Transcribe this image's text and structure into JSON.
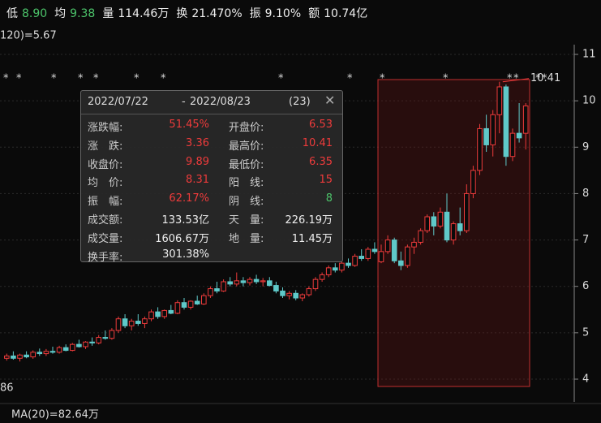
{
  "header": [
    {
      "label": "低",
      "value": "8.90",
      "color": "#4cc36a"
    },
    {
      "label": "均",
      "value": "9.38",
      "color": "#4cc36a"
    },
    {
      "label": "量",
      "value": "114.46万",
      "color": "#eeeeee"
    },
    {
      "label": "换",
      "value": "21.470%",
      "color": "#eeeeee"
    },
    {
      "label": "振",
      "value": "9.10%",
      "color": "#eeeeee"
    },
    {
      "label": "额",
      "value": "10.74亿",
      "color": "#eeeeee"
    }
  ],
  "ma_top": "120)=5.67",
  "ma_left": "86",
  "ma_bottom": "MA(20)=82.64万",
  "markers": [
    "*",
    "*",
    "*",
    "*",
    "*",
    "*",
    "*",
    "*",
    "*",
    "*",
    "*",
    "*",
    "*",
    "*",
    "*"
  ],
  "tooltip": {
    "start": "2022/07/22",
    "sep": "-",
    "end": "2022/08/23",
    "count": "(23)",
    "rows": [
      [
        {
          "label": "涨跌幅:",
          "value": "51.45%",
          "color": "#ee3b3b"
        },
        {
          "label": "开盘价:",
          "value": "6.53",
          "color": "#ee3b3b"
        }
      ],
      [
        {
          "label": "涨　跌:",
          "value": "3.36",
          "color": "#ee3b3b"
        },
        {
          "label": "最高价:",
          "value": "10.41",
          "color": "#ee3b3b"
        }
      ],
      [
        {
          "label": "收盘价:",
          "value": "9.89",
          "color": "#ee3b3b"
        },
        {
          "label": "最低价:",
          "value": "6.35",
          "color": "#ee3b3b"
        }
      ],
      [
        {
          "label": "均　价:",
          "value": "8.31",
          "color": "#ee3b3b"
        },
        {
          "label": "阳　线:",
          "value": "15",
          "color": "#ee3b3b"
        }
      ],
      [
        {
          "label": "振　幅:",
          "value": "62.17%",
          "color": "#ee3b3b"
        },
        {
          "label": "阴　线:",
          "value": "8",
          "color": "#4cc36a"
        }
      ],
      [
        {
          "label": "成交额:",
          "value": "133.53亿",
          "color": "#eeeeee"
        },
        {
          "label": "天　量:",
          "value": "226.19万",
          "color": "#eeeeee"
        }
      ],
      [
        {
          "label": "成交量:",
          "value": "1606.67万",
          "color": "#eeeeee"
        },
        {
          "label": "地　量:",
          "value": "11.45万",
          "color": "#eeeeee"
        }
      ],
      [
        {
          "label": "换手率:",
          "value": "301.38%",
          "color": "#eeeeee"
        }
      ]
    ]
  },
  "chart_data": {
    "type": "candlestick",
    "up_color": "#ee3b3b",
    "down_color": "#5fc9c9",
    "high_label": "10.41",
    "ylim": [
      4,
      11
    ],
    "yticks": [
      4,
      5,
      6,
      7,
      8,
      9,
      10,
      11
    ],
    "ohlc": [
      [
        4.45,
        4.55,
        4.4,
        4.5
      ],
      [
        4.5,
        4.6,
        4.42,
        4.45
      ],
      [
        4.45,
        4.55,
        4.38,
        4.52
      ],
      [
        4.52,
        4.6,
        4.45,
        4.48
      ],
      [
        4.48,
        4.62,
        4.44,
        4.58
      ],
      [
        4.58,
        4.66,
        4.5,
        4.55
      ],
      [
        4.55,
        4.65,
        4.5,
        4.6
      ],
      [
        4.6,
        4.7,
        4.55,
        4.58
      ],
      [
        4.58,
        4.72,
        4.55,
        4.68
      ],
      [
        4.68,
        4.75,
        4.6,
        4.62
      ],
      [
        4.62,
        4.78,
        4.6,
        4.75
      ],
      [
        4.75,
        4.85,
        4.68,
        4.7
      ],
      [
        4.7,
        4.82,
        4.65,
        4.8
      ],
      [
        4.8,
        4.9,
        4.72,
        4.78
      ],
      [
        4.78,
        4.95,
        4.75,
        4.9
      ],
      [
        4.9,
        5.05,
        4.85,
        4.88
      ],
      [
        4.88,
        5.1,
        4.85,
        5.05
      ],
      [
        5.05,
        5.35,
        5.0,
        5.3
      ],
      [
        5.3,
        5.4,
        5.1,
        5.15
      ],
      [
        5.15,
        5.3,
        5.05,
        5.25
      ],
      [
        5.25,
        5.4,
        5.15,
        5.2
      ],
      [
        5.2,
        5.35,
        5.1,
        5.3
      ],
      [
        5.3,
        5.5,
        5.25,
        5.45
      ],
      [
        5.45,
        5.55,
        5.3,
        5.35
      ],
      [
        5.35,
        5.5,
        5.3,
        5.48
      ],
      [
        5.48,
        5.6,
        5.4,
        5.42
      ],
      [
        5.42,
        5.7,
        5.4,
        5.65
      ],
      [
        5.65,
        5.75,
        5.5,
        5.55
      ],
      [
        5.55,
        5.7,
        5.5,
        5.68
      ],
      [
        5.68,
        5.8,
        5.6,
        5.62
      ],
      [
        5.62,
        5.85,
        5.6,
        5.8
      ],
      [
        5.8,
        6.0,
        5.75,
        5.95
      ],
      [
        5.95,
        6.1,
        5.85,
        5.9
      ],
      [
        5.9,
        6.15,
        5.88,
        6.1
      ],
      [
        6.1,
        6.2,
        6.0,
        6.05
      ],
      [
        6.05,
        6.3,
        6.0,
        6.12
      ],
      [
        6.12,
        6.2,
        6.0,
        6.08
      ],
      [
        6.08,
        6.2,
        6.02,
        6.15
      ],
      [
        6.15,
        6.25,
        6.05,
        6.1
      ],
      [
        6.1,
        6.18,
        6.0,
        6.12
      ],
      [
        6.12,
        6.2,
        6.0,
        6.02
      ],
      [
        6.02,
        6.1,
        5.85,
        5.9
      ],
      [
        5.9,
        5.98,
        5.75,
        5.8
      ],
      [
        5.8,
        5.9,
        5.72,
        5.85
      ],
      [
        5.85,
        5.92,
        5.7,
        5.75
      ],
      [
        5.75,
        5.85,
        5.68,
        5.82
      ],
      [
        5.82,
        6.0,
        5.78,
        5.95
      ],
      [
        5.95,
        6.2,
        5.9,
        6.15
      ],
      [
        6.15,
        6.3,
        6.1,
        6.25
      ],
      [
        6.25,
        6.45,
        6.2,
        6.4
      ],
      [
        6.4,
        6.5,
        6.3,
        6.35
      ],
      [
        6.35,
        6.55,
        6.3,
        6.5
      ],
      [
        6.5,
        6.6,
        6.4,
        6.45
      ],
      [
        6.45,
        6.7,
        6.42,
        6.65
      ],
      [
        6.65,
        6.8,
        6.55,
        6.6
      ],
      [
        6.6,
        6.85,
        6.55,
        6.8
      ],
      [
        6.8,
        6.95,
        6.7,
        6.75
      ],
      [
        6.53,
        6.9,
        6.5,
        6.75
      ],
      [
        6.75,
        7.1,
        6.7,
        7.0
      ],
      [
        7.0,
        7.05,
        6.5,
        6.55
      ],
      [
        6.55,
        6.75,
        6.35,
        6.45
      ],
      [
        6.45,
        6.9,
        6.4,
        6.85
      ],
      [
        6.85,
        7.05,
        6.7,
        6.95
      ],
      [
        6.95,
        7.25,
        6.9,
        7.2
      ],
      [
        7.2,
        7.55,
        7.15,
        7.5
      ],
      [
        7.5,
        7.6,
        7.1,
        7.3
      ],
      [
        7.3,
        7.7,
        7.25,
        7.6
      ],
      [
        7.6,
        8.0,
        6.95,
        7.0
      ],
      [
        7.0,
        7.4,
        6.9,
        7.35
      ],
      [
        7.35,
        7.7,
        7.1,
        7.2
      ],
      [
        7.2,
        8.2,
        7.15,
        8.0
      ],
      [
        8.0,
        8.6,
        7.9,
        8.5
      ],
      [
        8.5,
        9.5,
        8.4,
        9.4
      ],
      [
        9.4,
        9.7,
        8.9,
        9.05
      ],
      [
        9.05,
        9.8,
        8.8,
        9.7
      ],
      [
        9.7,
        10.41,
        9.3,
        10.3
      ],
      [
        10.3,
        10.35,
        8.6,
        8.8
      ],
      [
        8.8,
        9.4,
        8.7,
        9.3
      ],
      [
        9.3,
        9.95,
        9.1,
        9.2
      ],
      [
        9.3,
        9.95,
        8.95,
        9.89
      ]
    ]
  }
}
